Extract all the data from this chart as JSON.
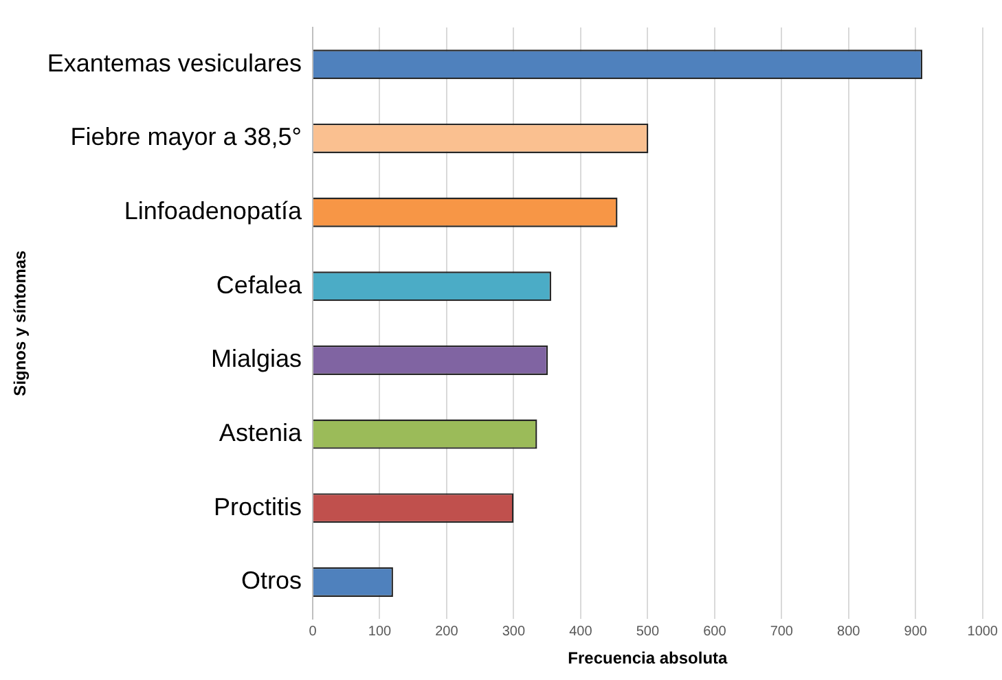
{
  "chart_data": {
    "type": "bar",
    "orientation": "horizontal",
    "xlabel": "Frecuencia absoluta",
    "ylabel": "Signos y síntomas",
    "categories": [
      "Exantemas vesiculares",
      "Fiebre mayor a 38,5°",
      "Linfoadenopatía",
      "Cefalea",
      "Mialgias",
      "Astenia",
      "Proctitis",
      "Otros"
    ],
    "values": [
      910,
      501,
      455,
      356,
      351,
      335,
      300,
      120
    ],
    "colors": [
      "#4f81bd",
      "#fac090",
      "#f79646",
      "#4bacc6",
      "#8064a2",
      "#9bbb59",
      "#c0504d",
      "#4f81bd"
    ],
    "xlim": [
      0,
      1000
    ],
    "xticks": [
      0,
      100,
      200,
      300,
      400,
      500,
      600,
      700,
      800,
      900,
      1000
    ],
    "grid": "x",
    "legend": false
  }
}
